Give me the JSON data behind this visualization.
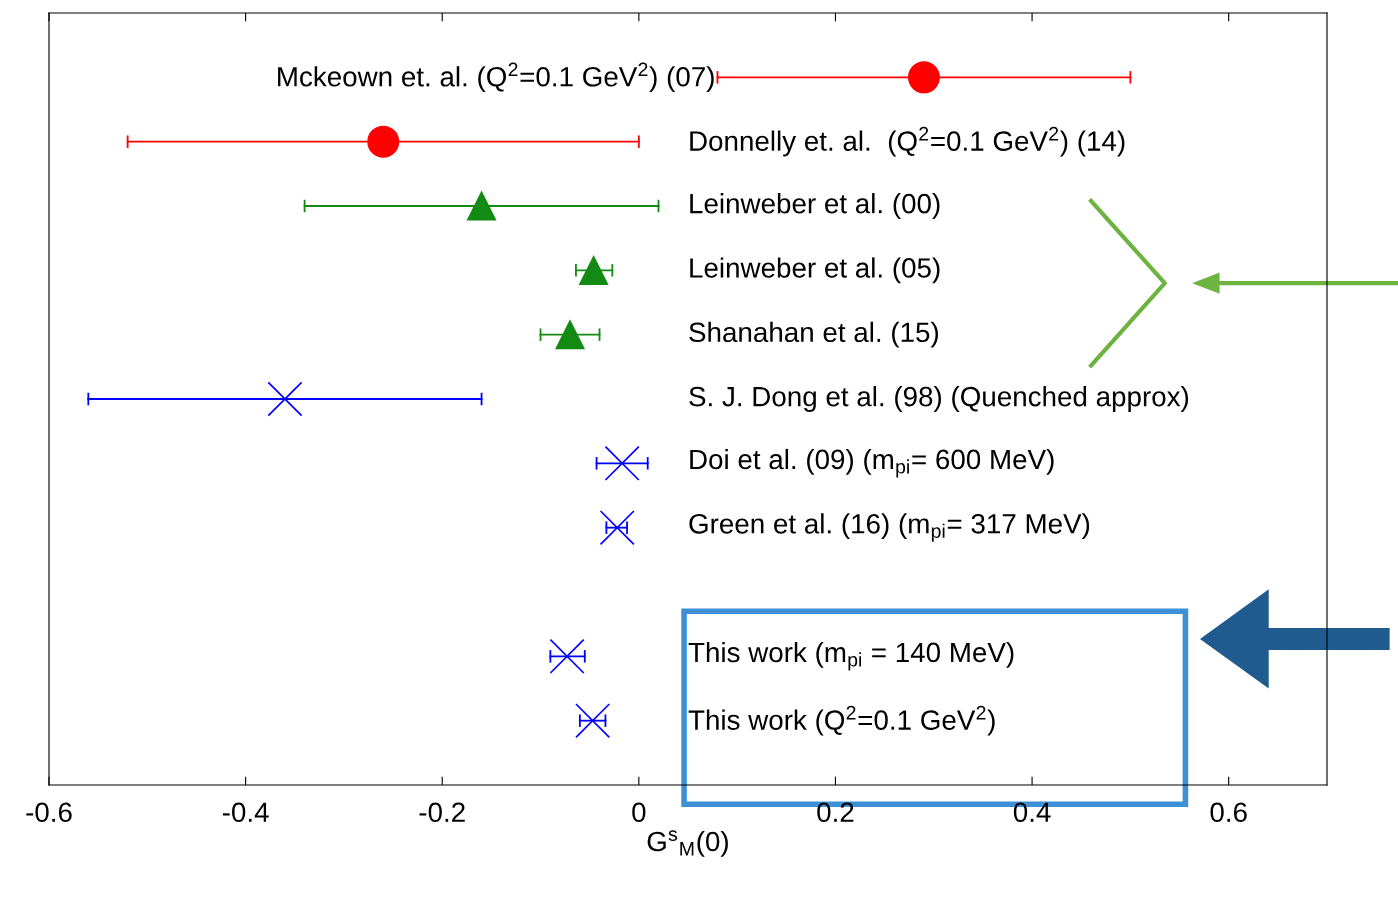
{
  "chart_data": {
    "type": "scatter",
    "orientation": "horizontal",
    "xlabel": "G$^{s}$$_{M}$(0)",
    "categories": [
      "Mckeown et. al. (Q$^{2}$=0.1 GeV$^{2}$) (07)",
      "Donnelly et. al.  (Q$^{2}$=0.1 GeV$^{2}$) (14)",
      "Leinweber et al. (00)",
      "Leinweber et al. (05)",
      "Shanahan et al. (15)",
      "S. J. Dong et al. (98) (Quenched approx)",
      "Doi et al. (09) (m$_{pi}$= 600 MeV)",
      "Green et al. (16) (m$_{pi}$= 317 MeV)",
      null,
      "This work (m$_{pi}$ = 140 MeV)",
      "This work (Q$^{2}$=0.1 GeV$^{2}$)"
    ],
    "series": [
      {
        "color": "#ff0000",
        "marker": "circle",
        "values": [
          0.29,
          -0.26,
          null,
          null,
          null,
          null,
          null,
          null,
          null,
          null,
          null
        ],
        "errors": [
          [
            0.08,
            0.5
          ],
          [
            -0.52,
            0.0
          ],
          null,
          null,
          null,
          null,
          null,
          null,
          null,
          null,
          null
        ]
      },
      {
        "color": "#138a13",
        "marker": "triangle",
        "values": [
          null,
          null,
          -0.16,
          -0.046,
          -0.07,
          null,
          null,
          null,
          null,
          null,
          null
        ],
        "errors": [
          null,
          null,
          [
            -0.34,
            0.02
          ],
          [
            -0.064,
            -0.027
          ],
          [
            -0.1,
            -0.04
          ],
          null,
          null,
          null,
          null,
          null,
          null
        ]
      },
      {
        "color": "#0000ff",
        "marker": "cross",
        "values": [
          null,
          null,
          null,
          null,
          null,
          -0.36,
          -0.017,
          -0.022,
          null,
          -0.073,
          -0.047
        ],
        "errors": [
          null,
          null,
          null,
          null,
          null,
          [
            -0.56,
            -0.16
          ],
          [
            -0.043,
            0.009
          ],
          [
            -0.033,
            -0.012
          ],
          null,
          [
            -0.09,
            -0.055
          ],
          [
            -0.06,
            -0.034
          ]
        ]
      }
    ],
    "xlim": [
      -0.6,
      0.7
    ],
    "xticks": [
      -0.6,
      -0.4,
      -0.2,
      0,
      0.2,
      0.4,
      0.6
    ],
    "tick_labels": "x",
    "grid": false,
    "legend": false
  }
}
